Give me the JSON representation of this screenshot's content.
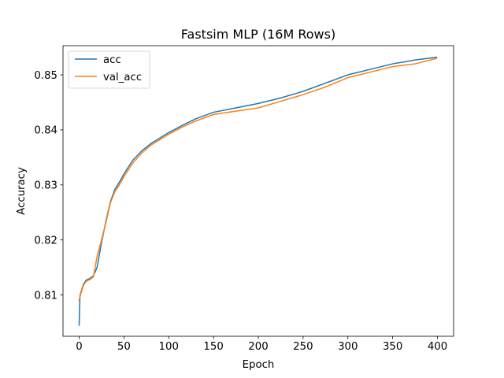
{
  "chart_data": {
    "type": "line",
    "title": "Fastsim MLP (16M Rows)",
    "xlabel": "Epoch",
    "ylabel": "Accuracy",
    "xlim": [
      -18,
      418
    ],
    "ylim": [
      0.8025,
      0.8553
    ],
    "xticks": [
      0,
      50,
      100,
      150,
      200,
      250,
      300,
      350,
      400
    ],
    "yticks": [
      0.81,
      0.82,
      0.83,
      0.84,
      0.85
    ],
    "ytick_labels": [
      "0.81",
      "0.82",
      "0.83",
      "0.84",
      "0.85"
    ],
    "grid": false,
    "legend_position": "upper-left",
    "x": [
      0,
      1,
      3,
      5,
      8,
      12,
      16,
      20,
      25,
      30,
      35,
      40,
      45,
      50,
      60,
      70,
      80,
      90,
      100,
      115,
      130,
      150,
      175,
      200,
      225,
      250,
      275,
      300,
      325,
      350,
      375,
      399
    ],
    "series": [
      {
        "name": "acc",
        "color": "#1f77b4",
        "values": [
          0.8045,
          0.81,
          0.811,
          0.812,
          0.8127,
          0.813,
          0.8135,
          0.815,
          0.8195,
          0.8235,
          0.827,
          0.8292,
          0.8305,
          0.832,
          0.8345,
          0.8362,
          0.8375,
          0.8385,
          0.8395,
          0.8408,
          0.842,
          0.8432,
          0.844,
          0.8448,
          0.8458,
          0.847,
          0.8485,
          0.85,
          0.851,
          0.852,
          0.8527,
          0.8532
        ]
      },
      {
        "name": "val_acc",
        "color": "#ff7f0e",
        "values": [
          0.809,
          0.8098,
          0.8108,
          0.8118,
          0.8125,
          0.8128,
          0.8133,
          0.817,
          0.82,
          0.8232,
          0.8268,
          0.8288,
          0.83,
          0.8315,
          0.834,
          0.8358,
          0.8372,
          0.8382,
          0.8392,
          0.8405,
          0.8416,
          0.8428,
          0.8434,
          0.844,
          0.8452,
          0.8464,
          0.8478,
          0.8495,
          0.8505,
          0.8515,
          0.852,
          0.853
        ]
      }
    ]
  }
}
